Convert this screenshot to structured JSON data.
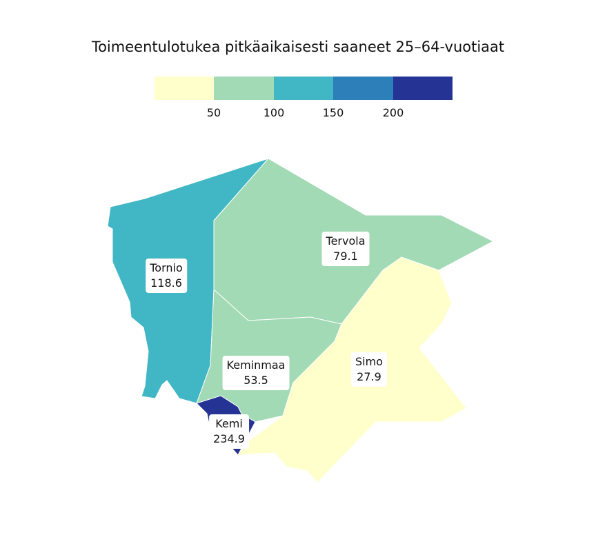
{
  "title": "Toimeentulotukea pitkäaikaisesti saaneet 25–64-vuotiaat",
  "legend": {
    "colors": [
      "#ffffcc",
      "#a1dab4",
      "#41b6c4",
      "#2c7fb8",
      "#253494"
    ],
    "breaks": [
      "50",
      "100",
      "150",
      "200"
    ]
  },
  "regions": [
    {
      "name": "Tornio",
      "value": "118.6",
      "color": "#41b6c4"
    },
    {
      "name": "Tervola",
      "value": "79.1",
      "color": "#a1dab4"
    },
    {
      "name": "Keminmaa",
      "value": "53.5",
      "color": "#a1dab4"
    },
    {
      "name": "Simo",
      "value": "27.9",
      "color": "#ffffcc"
    },
    {
      "name": "Kemi",
      "value": "234.9",
      "color": "#253494"
    }
  ]
}
